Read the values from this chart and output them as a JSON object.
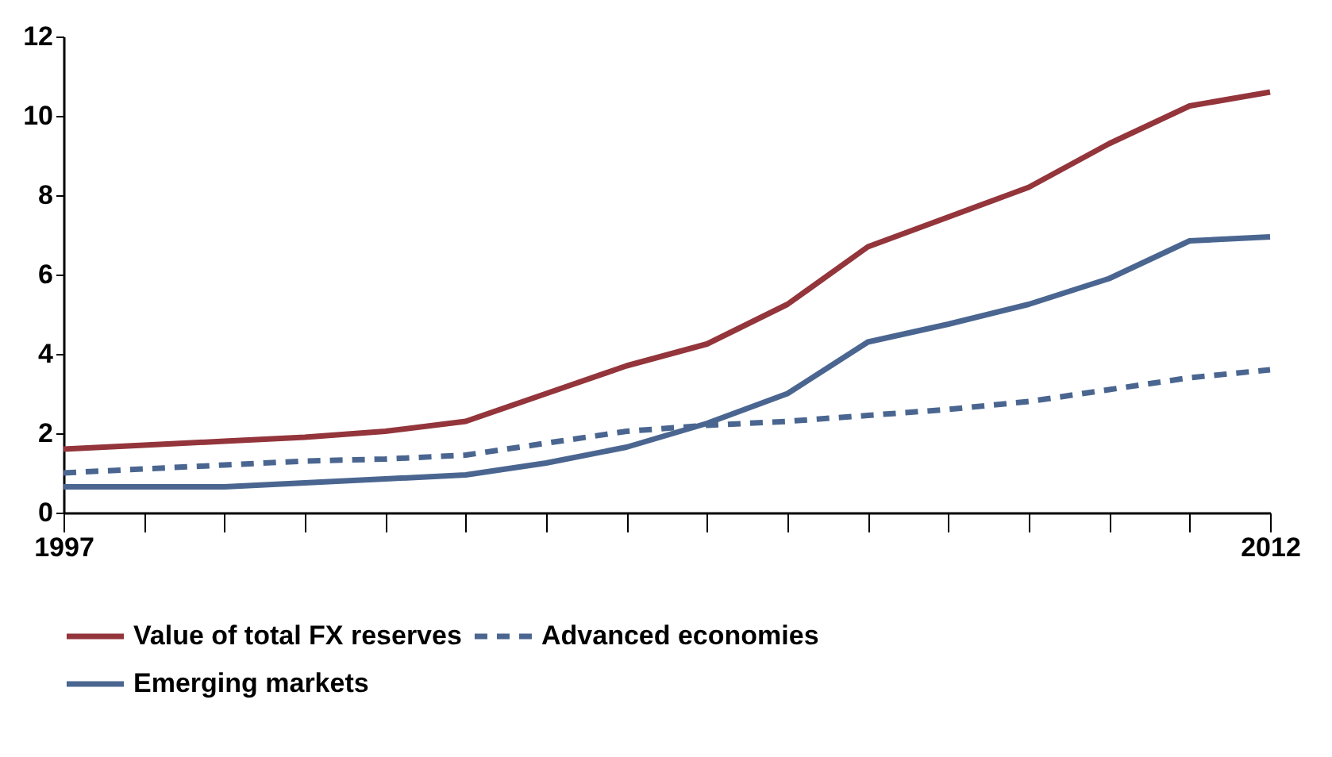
{
  "chart_data": {
    "type": "line",
    "x": [
      1997,
      1998,
      1999,
      2000,
      2001,
      2002,
      2003,
      2004,
      2005,
      2006,
      2007,
      2008,
      2009,
      2010,
      2011,
      2012
    ],
    "series": [
      {
        "name": "Value of total FX reserves",
        "color": "#93353b",
        "line_style": "solid",
        "values": [
          1.6,
          1.7,
          1.8,
          1.9,
          2.05,
          2.3,
          3.0,
          3.7,
          4.25,
          5.25,
          6.7,
          7.45,
          8.2,
          9.3,
          10.25,
          10.6
        ]
      },
      {
        "name": "Advanced economies",
        "color": "#4a6690",
        "line_style": "dashed",
        "values": [
          1.0,
          1.1,
          1.2,
          1.3,
          1.35,
          1.45,
          1.75,
          2.05,
          2.2,
          2.3,
          2.45,
          2.6,
          2.8,
          3.1,
          3.4,
          3.6
        ]
      },
      {
        "name": "Emerging markets",
        "color": "#4a6690",
        "line_style": "solid",
        "values": [
          0.65,
          0.65,
          0.65,
          0.75,
          0.85,
          0.95,
          1.25,
          1.65,
          2.25,
          3.0,
          4.3,
          4.75,
          5.25,
          5.9,
          6.85,
          6.95
        ]
      }
    ],
    "xlim": [
      1997,
      2012
    ],
    "xticks": [
      1997,
      {
        "value": 1998,
        "label": null
      },
      {
        "value": 1999,
        "label": null
      },
      {
        "value": 2000,
        "label": null
      },
      {
        "value": 2001,
        "label": null
      },
      {
        "value": 2002,
        "label": null
      },
      {
        "value": 2003,
        "label": null
      },
      {
        "value": 2004,
        "label": null
      },
      {
        "value": 2005,
        "label": null
      },
      {
        "value": 2006,
        "label": null
      },
      {
        "value": 2007,
        "label": null
      },
      {
        "value": 2008,
        "label": null
      },
      {
        "value": 2009,
        "label": null
      },
      {
        "value": 2010,
        "label": null
      },
      {
        "value": 2011,
        "label": null
      },
      2012
    ],
    "ylim": [
      0,
      12
    ],
    "yticks": [
      0,
      2,
      4,
      6,
      8,
      10,
      12
    ],
    "grid": false,
    "legend": "bottom"
  }
}
